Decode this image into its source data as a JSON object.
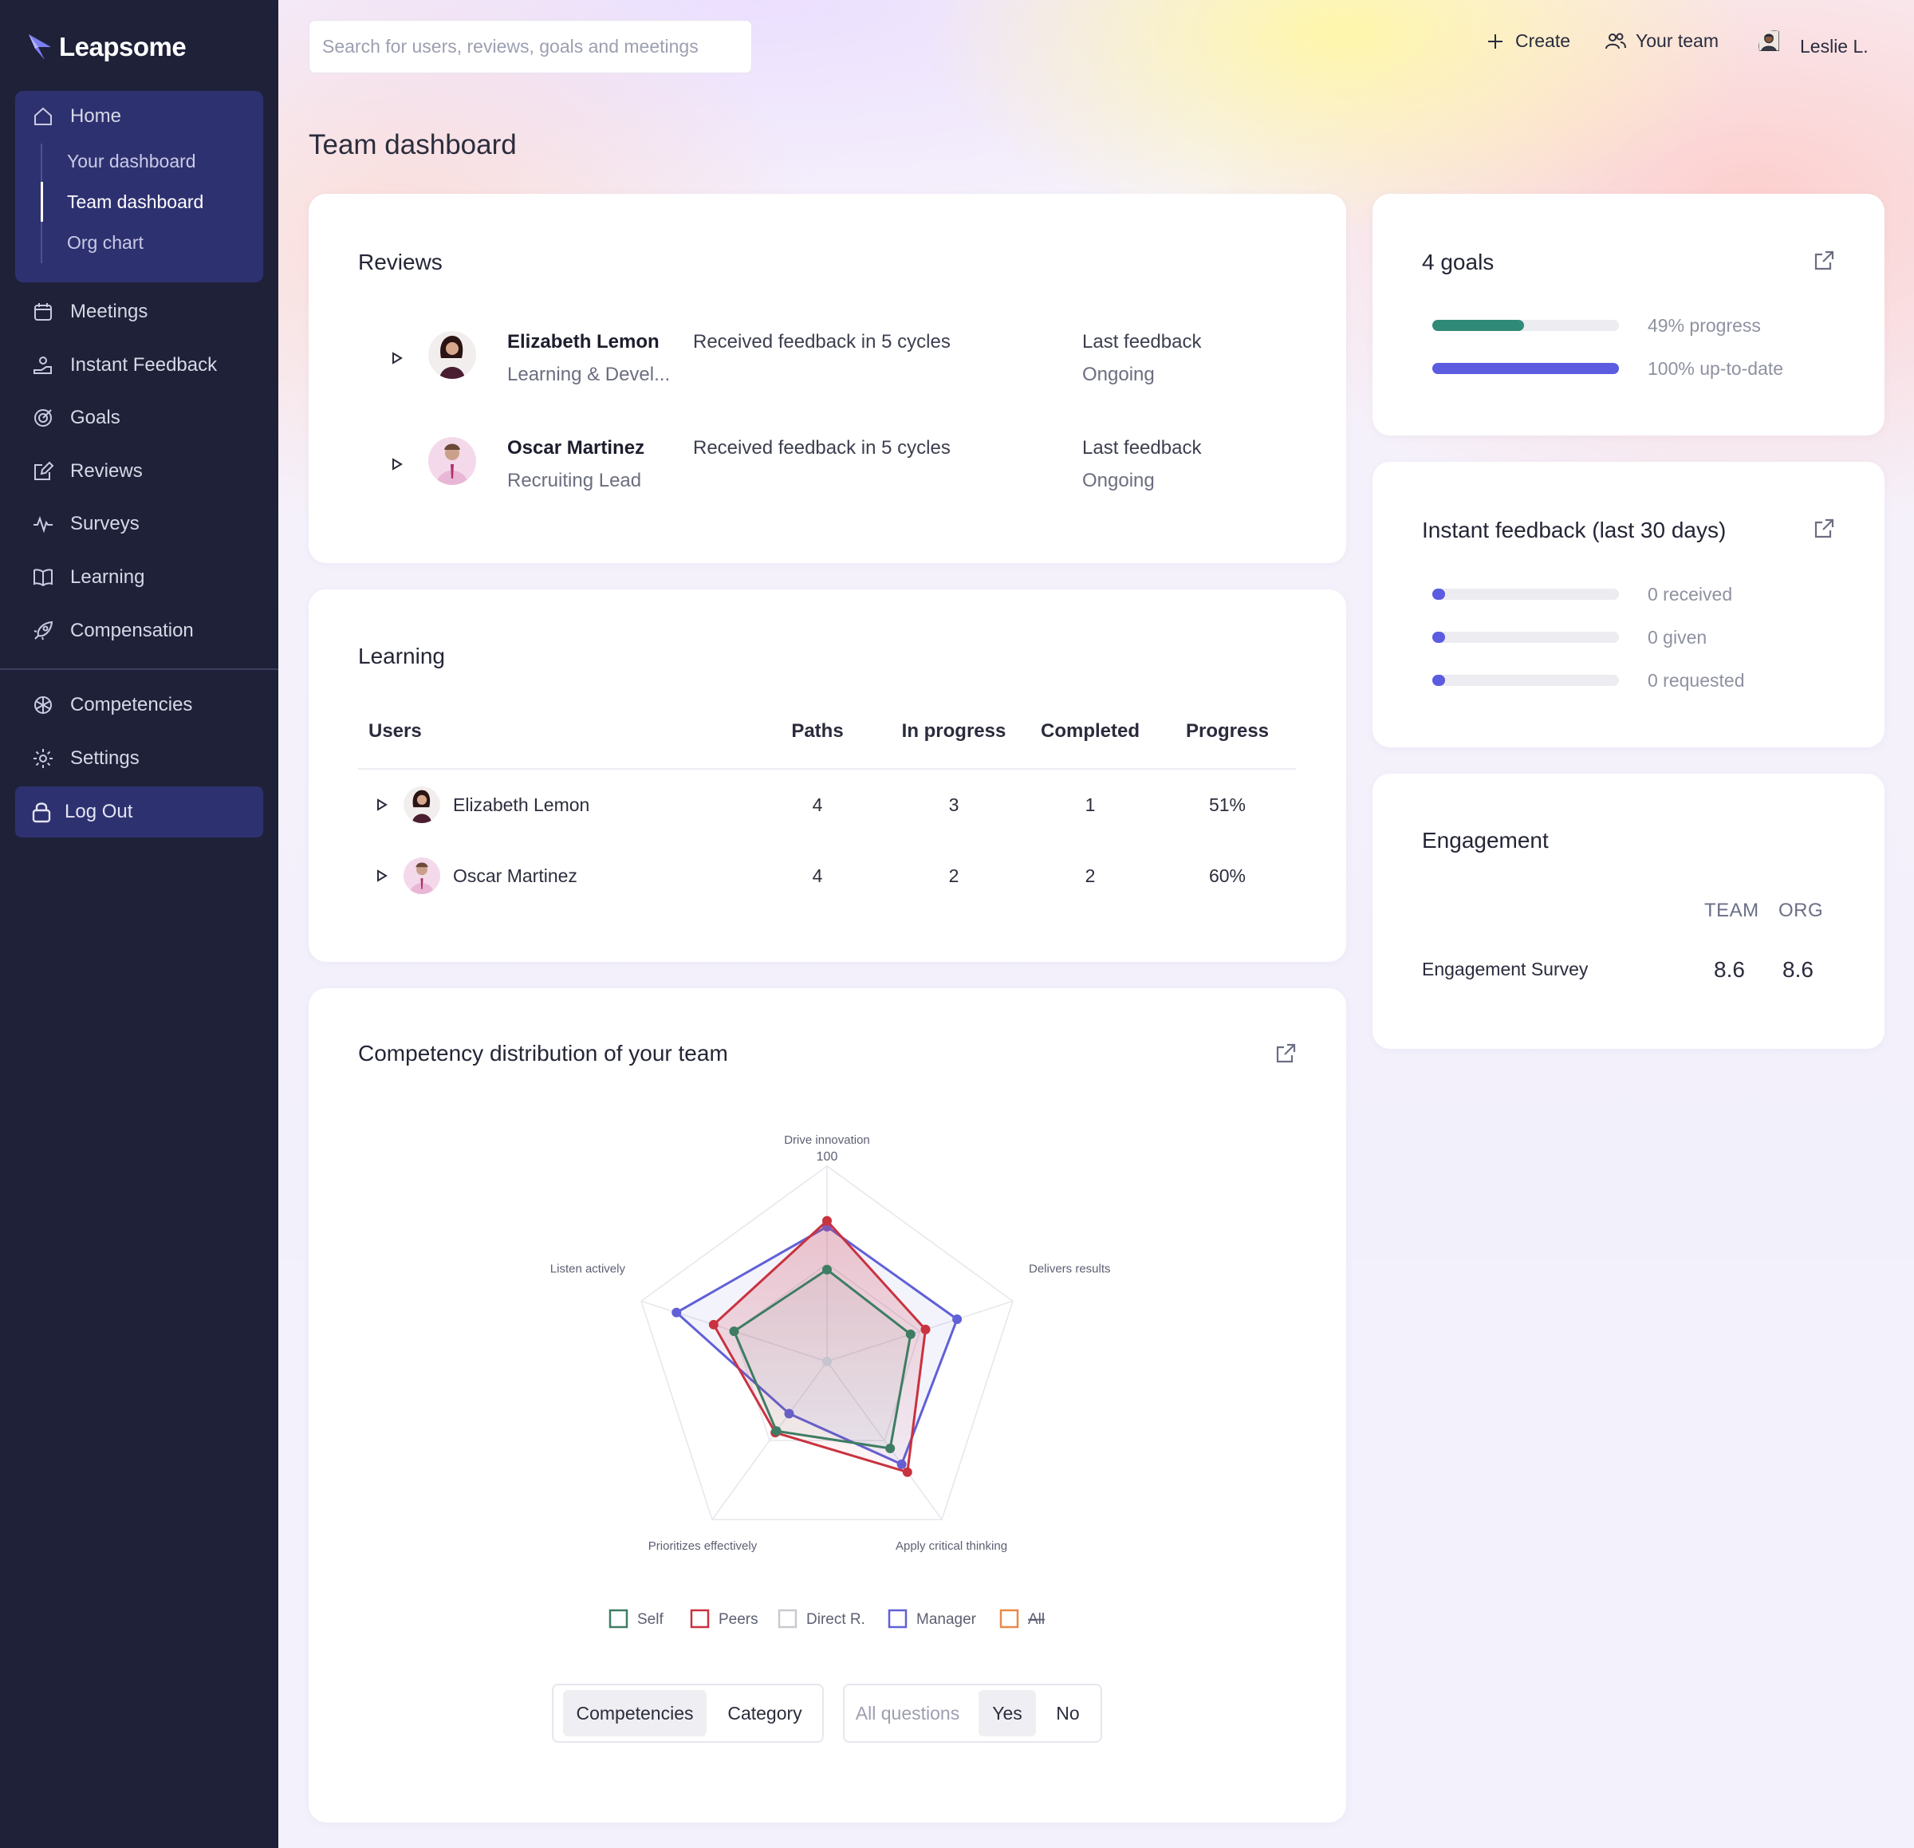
{
  "app": {
    "name": "Leapsome"
  },
  "sidebar": {
    "home": "Home",
    "home_sub": [
      "Your dashboard",
      "Team dashboard",
      "Org chart"
    ],
    "items": [
      "Meetings",
      "Instant Feedback",
      "Goals",
      "Reviews",
      "Surveys",
      "Learning",
      "Compensation"
    ],
    "secondary": [
      "Competencies",
      "Settings"
    ],
    "logout": "Log Out"
  },
  "header": {
    "search_placeholder": "Search for users, reviews, goals and meetings",
    "create": "Create",
    "your_team": "Your team",
    "user": "Leslie L."
  },
  "page": {
    "title": "Team dashboard"
  },
  "reviews": {
    "title": "Reviews",
    "rows": [
      {
        "name": "Elizabeth Lemon",
        "role": "Learning & Devel...",
        "status": "Received feedback in 5 cycles",
        "last_label": "Last feedback",
        "last_value": "Ongoing"
      },
      {
        "name": "Oscar Martinez",
        "role": "Recruiting Lead",
        "status": "Received feedback in 5 cycles",
        "last_label": "Last feedback",
        "last_value": "Ongoing"
      }
    ]
  },
  "learning": {
    "title": "Learning",
    "columns": [
      "Users",
      "Paths",
      "In progress",
      "Completed",
      "Progress"
    ],
    "rows": [
      {
        "user": "Elizabeth Lemon",
        "paths": "4",
        "in_progress": "3",
        "completed": "1",
        "progress": "51%"
      },
      {
        "user": "Oscar Martinez",
        "paths": "4",
        "in_progress": "2",
        "completed": "2",
        "progress": "60%"
      }
    ]
  },
  "goals": {
    "title": "4 goals",
    "progress_label": "49% progress",
    "progress_value": 0.49,
    "uptodate_label": "100% up-to-date",
    "uptodate_value": 1.0,
    "colors": {
      "progress": "#2f8a77",
      "uptodate": "#5b5ce0"
    }
  },
  "instant_feedback": {
    "title": "Instant feedback (last 30 days)",
    "rows": [
      {
        "label": "0 received",
        "value": 0
      },
      {
        "label": "0 given",
        "value": 0
      },
      {
        "label": "0 requested",
        "value": 0
      }
    ],
    "color": "#5b5ce0"
  },
  "engagement": {
    "title": "Engagement",
    "col_team": "TEAM",
    "col_org": "ORG",
    "rows": [
      {
        "label": "Engagement Survey",
        "team": "8.6",
        "org": "8.6"
      }
    ]
  },
  "competency": {
    "title": "Competency distribution of your team",
    "toggle_view": [
      "Competencies",
      "Category"
    ],
    "toggle_view_selected": "Competencies",
    "toggle_questions": [
      "All questions",
      "Yes",
      "No"
    ],
    "toggle_questions_selected": "Yes"
  },
  "chart_data": {
    "type": "radar",
    "axes": [
      "Drive innovation",
      "Delivers results",
      "Apply critical thinking",
      "Prioritizes effectively",
      "Listen actively"
    ],
    "scale_label": "100",
    "range": [
      0,
      100
    ],
    "grid": true,
    "legend_position": "bottom",
    "series": [
      {
        "name": "Self",
        "values": [
          47,
          45,
          55,
          44,
          50
        ],
        "color": "#3e7d63",
        "visible": true
      },
      {
        "name": "Peers",
        "values": [
          72,
          53,
          70,
          45,
          61
        ],
        "color": "#c9323f",
        "visible": true
      },
      {
        "name": "Direct R.",
        "values": [],
        "color": "#c9c9d2",
        "visible": true
      },
      {
        "name": "Manager",
        "values": [
          69,
          70,
          65,
          33,
          81
        ],
        "color": "#6060d8",
        "visible": true
      },
      {
        "name": "All",
        "values": [],
        "color": "#e8894a",
        "visible": false
      }
    ]
  }
}
